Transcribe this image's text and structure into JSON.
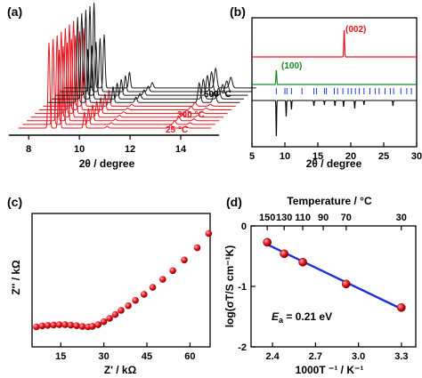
{
  "panels": [
    {
      "id": "a",
      "label": "(a)",
      "chart_data": {
        "type": "line",
        "xlabel": "2θ / degree",
        "xlim": [
          7.5,
          15.3
        ],
        "xticks": [
          "8",
          "10",
          "12",
          "14"
        ],
        "temperature_labels": [
          "500 °C",
          "300 °C",
          "25 °C"
        ],
        "series_colors": {
          "low_temperature": "#e8141e",
          "high_temperature": "#1a1a1a"
        },
        "peaks_2theta": [
          8.8,
          9.2,
          10.2,
          13.6
        ],
        "traces": 12
      }
    },
    {
      "id": "b",
      "label": "(b)",
      "chart_data": {
        "type": "line",
        "xlabel": "2θ / degree",
        "xlim": [
          5,
          30
        ],
        "xticks": [
          "5",
          "10",
          "15",
          "20",
          "25",
          "30"
        ],
        "series": [
          {
            "color": "#e8141e",
            "peak_label": "(002)",
            "peaks": [
              19.0
            ]
          },
          {
            "color": "#1c8a2a",
            "peak_label": "(100)",
            "peaks": [
              8.7
            ]
          },
          {
            "color": "#000000",
            "peaks": [
              8.7,
              10.2,
              11.0,
              14.4,
              16.0,
              17.6,
              18.9,
              20.6,
              22.0,
              26.4
            ]
          }
        ],
        "reflection_marks": [
          8.7,
          10.0,
          10.3,
          11.0,
          12.6,
          14.4,
          14.8,
          16.0,
          16.3,
          17.5,
          18.0,
          18.8,
          19.6,
          20.1,
          20.7,
          21.3,
          22.0,
          22.9,
          23.7,
          24.3,
          25.2,
          26.0,
          26.5,
          27.6,
          28.5,
          29.2
        ],
        "reflection_color": "#1f3fd6"
      }
    },
    {
      "id": "c",
      "label": "(c)",
      "chart_data": {
        "type": "scatter",
        "xlabel": "Z' / kΩ",
        "ylabel": "Z'' / kΩ",
        "xlim": [
          5,
          67
        ],
        "xticks": [
          "15",
          "30",
          "45",
          "60"
        ],
        "marker_color": "#e8141e",
        "points": [
          [
            6.5,
            10.5
          ],
          [
            8.5,
            11.0
          ],
          [
            10.5,
            11.3
          ],
          [
            12.5,
            11.5
          ],
          [
            14.5,
            11.6
          ],
          [
            16.5,
            11.6
          ],
          [
            18.5,
            11.4
          ],
          [
            20.5,
            11.1
          ],
          [
            22.5,
            10.7
          ],
          [
            24.5,
            10.5
          ],
          [
            26.0,
            10.8
          ],
          [
            28.0,
            11.6
          ],
          [
            30.0,
            13.2
          ],
          [
            32.0,
            15.0
          ],
          [
            34.0,
            17.0
          ],
          [
            36.0,
            19.2
          ],
          [
            38.5,
            21.6
          ],
          [
            41.0,
            24.4
          ],
          [
            44.0,
            27.6
          ],
          [
            47.0,
            31.2
          ],
          [
            50.5,
            35.4
          ],
          [
            54.0,
            40.0
          ],
          [
            58.0,
            45.6
          ],
          [
            62.5,
            52.0
          ],
          [
            66.5,
            59.5
          ]
        ]
      }
    },
    {
      "id": "d",
      "label": "(d)",
      "chart_data": {
        "type": "scatter",
        "xlabel": "1000T ⁻¹ / K⁻¹",
        "ylabel": "log(σT/S cm⁻¹K)",
        "top_axis_label": "Temperature / °C",
        "xlim": [
          2.25,
          3.4
        ],
        "ylim": [
          -2,
          0
        ],
        "xticks": [
          "2.4",
          "2.7",
          "3.0",
          "3.3"
        ],
        "yticks": [
          "0",
          "-1",
          "-2"
        ],
        "top_ticks": [
          "150",
          "130",
          "110",
          "90",
          "70",
          "30"
        ],
        "top_tick_x": [
          2.363,
          2.481,
          2.611,
          2.754,
          2.914,
          3.299
        ],
        "marker_color": "#e8141e",
        "fit_color": "#1f2fd6",
        "x": [
          2.363,
          2.481,
          2.611,
          2.914,
          3.299
        ],
        "y": [
          -0.27,
          -0.46,
          -0.6,
          -0.96,
          -1.35
        ],
        "annotation": "E",
        "annotation_sub": "a",
        "annotation_tail": " = 0.21 eV"
      }
    }
  ]
}
